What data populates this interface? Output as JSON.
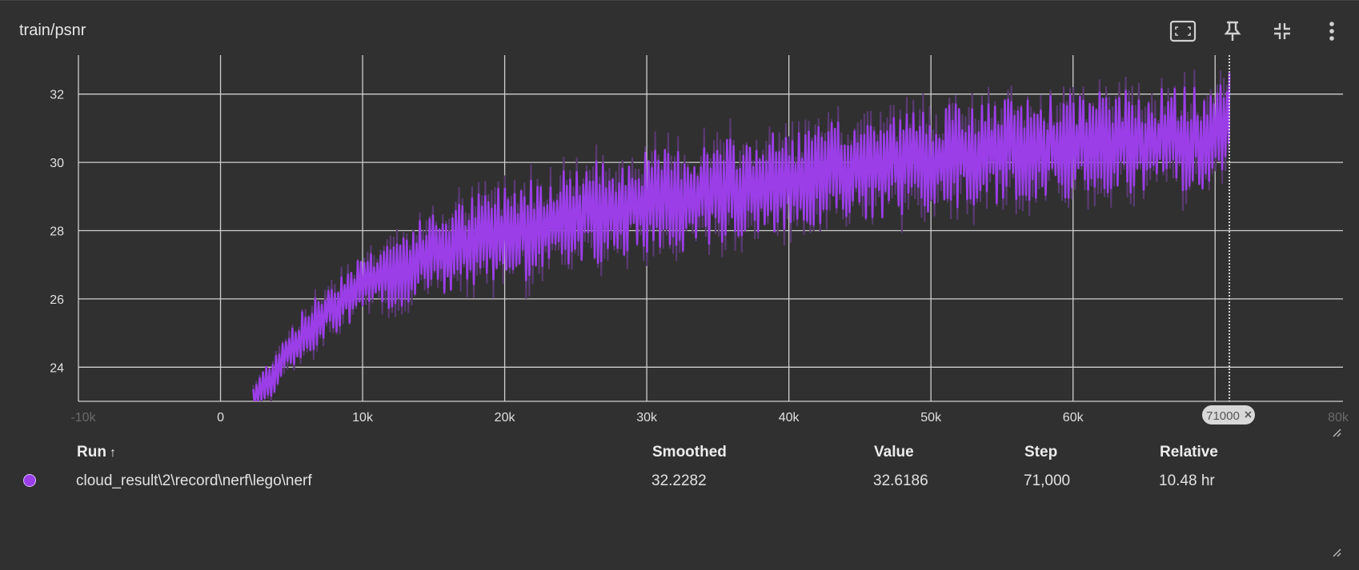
{
  "card": {
    "title": "train/psnr",
    "toolbar": {
      "fit_icon": "fit-to-data-icon",
      "pin_icon": "pin-icon",
      "collapse_icon": "collapse-icon",
      "more_icon": "more-vert-icon"
    }
  },
  "cursor_badge": "71000",
  "table": {
    "headers": {
      "run": "Run",
      "sort_arrow": "↑",
      "smoothed": "Smoothed",
      "value": "Value",
      "step": "Step",
      "relative": "Relative"
    },
    "rows": [
      {
        "run": "cloud_result\\2\\record\\nerf\\lego\\nerf",
        "smoothed": "32.2282",
        "value": "32.6186",
        "step": "71,000",
        "relative": "10.48 hr",
        "color": "#9b3ee8"
      }
    ]
  },
  "chart_data": {
    "type": "line",
    "x_ticks": [
      "0",
      "10k",
      "20k",
      "30k",
      "40k",
      "50k",
      "60k"
    ],
    "x_ticks_clipped": [
      "-10k",
      "80k"
    ],
    "y_ticks": [
      "24",
      "26",
      "28",
      "30",
      "32"
    ],
    "xlim": [
      -10000,
      79000
    ],
    "ylim": [
      23,
      33
    ],
    "grid": true,
    "cursor_step": 71000,
    "series": [
      {
        "color": "#9b3ee8",
        "raw_color": "#5a3a73",
        "x_start": 2300,
        "x_end": 71000,
        "trend_points": [
          [
            2300,
            23.0
          ],
          [
            5000,
            24.6
          ],
          [
            8000,
            25.8
          ],
          [
            10000,
            26.4
          ],
          [
            15000,
            27.3
          ],
          [
            20000,
            27.9
          ],
          [
            25000,
            28.4
          ],
          [
            30000,
            28.8
          ],
          [
            35000,
            29.1
          ],
          [
            40000,
            29.4
          ],
          [
            45000,
            29.8
          ],
          [
            50000,
            30.1
          ],
          [
            55000,
            30.3
          ],
          [
            60000,
            30.5
          ],
          [
            65000,
            30.6
          ],
          [
            70000,
            30.7
          ],
          [
            71000,
            31.2
          ]
        ],
        "oscillation_amplitude": 1.4,
        "last_smoothed": 32.2282,
        "last_value": 32.6186
      }
    ]
  }
}
